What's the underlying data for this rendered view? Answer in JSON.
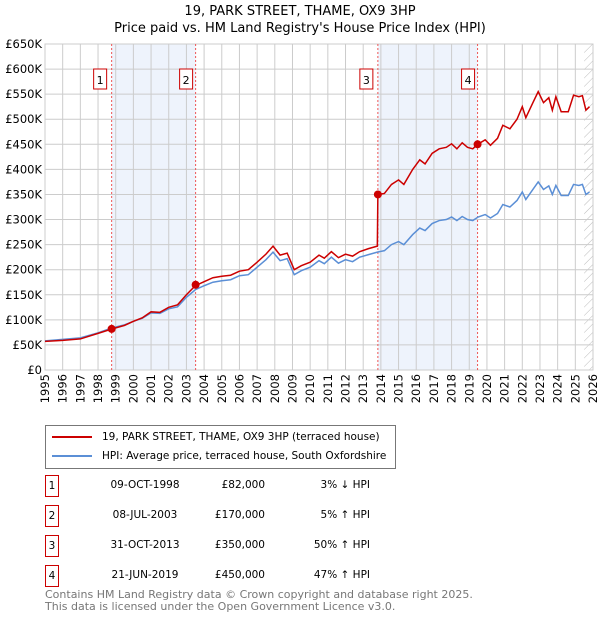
{
  "chart_data": {
    "type": "line",
    "title": "19, PARK STREET, THAME, OX9 3HP",
    "subtitle": "Price paid vs. HM Land Registry's House Price Index (HPI)",
    "xlim": [
      1995,
      2026
    ],
    "ylim": [
      0,
      650000
    ],
    "y_ticks": [
      {
        "v": 0,
        "l": "£0"
      },
      {
        "v": 50000,
        "l": "£50K"
      },
      {
        "v": 100000,
        "l": "£100K"
      },
      {
        "v": 150000,
        "l": "£150K"
      },
      {
        "v": 200000,
        "l": "£200K"
      },
      {
        "v": 250000,
        "l": "£250K"
      },
      {
        "v": 300000,
        "l": "£300K"
      },
      {
        "v": 350000,
        "l": "£350K"
      },
      {
        "v": 400000,
        "l": "£400K"
      },
      {
        "v": 450000,
        "l": "£450K"
      },
      {
        "v": 500000,
        "l": "£500K"
      },
      {
        "v": 550000,
        "l": "£550K"
      },
      {
        "v": 600000,
        "l": "£600K"
      },
      {
        "v": 650000,
        "l": "£650K"
      }
    ],
    "x_ticks": [
      "1995",
      "1996",
      "1997",
      "1998",
      "1999",
      "2000",
      "2001",
      "2002",
      "2003",
      "2004",
      "2005",
      "2006",
      "2007",
      "2008",
      "2009",
      "2010",
      "2011",
      "2012",
      "2013",
      "2014",
      "2015",
      "2016",
      "2017",
      "2018",
      "2019",
      "2020",
      "2021",
      "2022",
      "2023",
      "2024",
      "2025",
      "2026"
    ],
    "grid": true,
    "forecast_from": 2025.5,
    "shaded_ranges": [
      [
        1998.77,
        2003.52
      ],
      [
        2013.83,
        2019.47
      ]
    ],
    "series": [
      {
        "name": "19, PARK STREET, THAME, OX9 3HP (terraced house)",
        "color": "#cc0000",
        "x": [
          1995,
          1996,
          1997,
          1998,
          1998.8,
          1999.5,
          2000,
          2000.5,
          2001,
          2001.5,
          2002,
          2002.5,
          2003,
          2003.5,
          2004,
          2004.5,
          2005,
          2005.5,
          2006,
          2006.5,
          2007,
          2007.5,
          2007.9,
          2008.3,
          2008.7,
          2009.1,
          2009.5,
          2010,
          2010.5,
          2010.8,
          2011.2,
          2011.6,
          2012,
          2012.4,
          2012.8,
          2013.3,
          2013.8,
          2013.83,
          2014.2,
          2014.6,
          2015,
          2015.3,
          2015.8,
          2016.2,
          2016.5,
          2016.9,
          2017.3,
          2017.7,
          2018,
          2018.3,
          2018.6,
          2018.9,
          2019.2,
          2019.47,
          2019.9,
          2020.2,
          2020.6,
          2020.9,
          2021.3,
          2021.7,
          2022,
          2022.2,
          2022.6,
          2022.9,
          2023.2,
          2023.5,
          2023.7,
          2023.9,
          2024.2,
          2024.6,
          2024.9,
          2025.2,
          2025.4,
          2025.6,
          2025.8
        ],
        "y": [
          57,
          59,
          62,
          73,
          82,
          89,
          97,
          104,
          116,
          115,
          125,
          130,
          150,
          168,
          176,
          184,
          187,
          189,
          197,
          200,
          215,
          231,
          247,
          229,
          233,
          200,
          208,
          215,
          229,
          223,
          236,
          224,
          231,
          227,
          236,
          242,
          247,
          350,
          352,
          370,
          379,
          370,
          400,
          419,
          411,
          432,
          441,
          444,
          451,
          441,
          453,
          444,
          441,
          450,
          459,
          448,
          462,
          488,
          481,
          500,
          525,
          503,
          533,
          555,
          533,
          543,
          518,
          545,
          515,
          515,
          548,
          545,
          547,
          518,
          525
        ],
        "y_unit": "thousand GBP"
      },
      {
        "name": "HPI: Average price, terraced house, South Oxfordshire",
        "color": "#5b8fd6",
        "x": [
          1995,
          1996,
          1997,
          1998,
          1998.8,
          1999.5,
          2000,
          2000.5,
          2001,
          2001.5,
          2002,
          2002.5,
          2003,
          2003.5,
          2004,
          2004.5,
          2005,
          2005.5,
          2006,
          2006.5,
          2007,
          2007.5,
          2007.9,
          2008.3,
          2008.7,
          2009.1,
          2009.5,
          2010,
          2010.5,
          2010.8,
          2011.2,
          2011.6,
          2012,
          2012.4,
          2012.8,
          2013.3,
          2013.8,
          2014.2,
          2014.6,
          2015,
          2015.3,
          2015.8,
          2016.2,
          2016.5,
          2016.9,
          2017.3,
          2017.7,
          2018,
          2018.3,
          2018.6,
          2018.9,
          2019.2,
          2019.5,
          2019.9,
          2020.2,
          2020.6,
          2020.9,
          2021.3,
          2021.7,
          2022,
          2022.2,
          2022.6,
          2022.9,
          2023.2,
          2023.5,
          2023.7,
          2023.9,
          2024.2,
          2024.6,
          2024.9,
          2025.2,
          2025.4,
          2025.6,
          2025.8
        ],
        "y": [
          58,
          61,
          64,
          74,
          84,
          90,
          97,
          103,
          114,
          113,
          122,
          126,
          145,
          160,
          168,
          175,
          178,
          180,
          188,
          190,
          205,
          220,
          235,
          218,
          222,
          190,
          198,
          205,
          218,
          212,
          225,
          213,
          220,
          216,
          225,
          230,
          235,
          238,
          250,
          256,
          250,
          270,
          283,
          278,
          292,
          298,
          300,
          305,
          298,
          306,
          300,
          298,
          305,
          310,
          303,
          312,
          330,
          325,
          338,
          355,
          340,
          360,
          375,
          360,
          367,
          350,
          368,
          348,
          348,
          370,
          368,
          370,
          350,
          355
        ],
        "y_unit": "thousand GBP"
      }
    ],
    "sales": [
      {
        "n": "1",
        "date": "09-OCT-1998",
        "x": 1998.77,
        "price": 82000,
        "price_label": "£82,000",
        "hpi": "3% ↓ HPI"
      },
      {
        "n": "2",
        "date": "08-JUL-2003",
        "x": 2003.52,
        "price": 170000,
        "price_label": "£170,000",
        "hpi": "5% ↑ HPI"
      },
      {
        "n": "3",
        "date": "31-OCT-2013",
        "x": 2013.83,
        "price": 350000,
        "price_label": "£350,000",
        "hpi": "50% ↑ HPI"
      },
      {
        "n": "4",
        "date": "21-JUN-2019",
        "x": 2019.47,
        "price": 450000,
        "price_label": "£450,000",
        "hpi": "47% ↑ HPI"
      }
    ]
  },
  "legend": {
    "red": "19, PARK STREET, THAME, OX9 3HP (terraced house)",
    "blue": "HPI: Average price, terraced house, South Oxfordshire"
  },
  "footer": {
    "line1": "Contains HM Land Registry data © Crown copyright and database right 2025.",
    "line2": "This data is licensed under the Open Government Licence v3.0."
  }
}
